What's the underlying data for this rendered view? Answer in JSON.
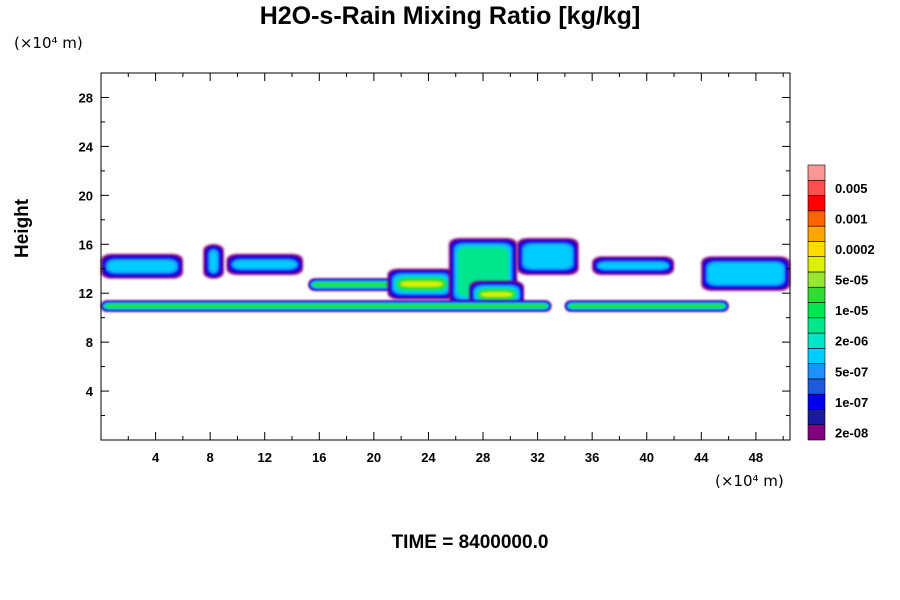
{
  "chart_data": {
    "type": "contour",
    "title": "H2O-s-Rain Mixing Ratio [kg/kg]",
    "xlabel": "",
    "ylabel": "Height",
    "x_unit_label": "(×10⁴ m)",
    "y_unit_label": "(×10⁴ m)",
    "xlim": [
      0,
      50.5
    ],
    "ylim": [
      0,
      30
    ],
    "xticks": [
      4,
      8,
      12,
      16,
      20,
      24,
      28,
      32,
      36,
      40,
      44,
      48
    ],
    "yticks": [
      4,
      8,
      12,
      16,
      20,
      24,
      28
    ],
    "footer": "TIME = 8400000.0",
    "legend": {
      "placement": "right",
      "labels": [
        "0.005",
        "0.001",
        "0.0002",
        "5e-05",
        "1e-05",
        "2e-06",
        "5e-07",
        "1e-07",
        "2e-08"
      ],
      "colors": [
        "#800080",
        "#1a1aa0",
        "#0000ee",
        "#1e5adc",
        "#1e90ff",
        "#00cdff",
        "#00e6c8",
        "#00e68c",
        "#00e650",
        "#32dc32",
        "#96e632",
        "#dcf000",
        "#ffdc00",
        "#ffa500",
        "#ff6400",
        "#ff0000",
        "#ff5050",
        "#ff9696"
      ]
    },
    "regions": [
      {
        "x": [
          0,
          6
        ],
        "y": [
          13.2,
          15.2
        ],
        "level": 6
      },
      {
        "x": [
          7.5,
          9
        ],
        "y": [
          13.2,
          16
        ],
        "level": 6
      },
      {
        "x": [
          9.2,
          14.8
        ],
        "y": [
          13.5,
          15.2
        ],
        "level": 5
      },
      {
        "x": [
          15.2,
          24
        ],
        "y": [
          12.2,
          13.2
        ],
        "level": 10
      },
      {
        "x": [
          21,
          26
        ],
        "y": [
          11.5,
          14
        ],
        "level": 12
      },
      {
        "x": [
          25.5,
          30.5
        ],
        "y": [
          11,
          16.5
        ],
        "level": 7
      },
      {
        "x": [
          27,
          31
        ],
        "y": [
          10.8,
          13
        ],
        "level": 11
      },
      {
        "x": [
          30.5,
          35
        ],
        "y": [
          13.5,
          16.5
        ],
        "level": 6
      },
      {
        "x": [
          36,
          42
        ],
        "y": [
          13.5,
          15
        ],
        "level": 5
      },
      {
        "x": [
          44,
          50.5
        ],
        "y": [
          12.2,
          15
        ],
        "level": 5
      },
      {
        "x": [
          0,
          33
        ],
        "y": [
          10.5,
          11.4
        ],
        "level": 10
      },
      {
        "x": [
          34,
          46
        ],
        "y": [
          10.5,
          11.4
        ],
        "level": 10
      }
    ]
  }
}
